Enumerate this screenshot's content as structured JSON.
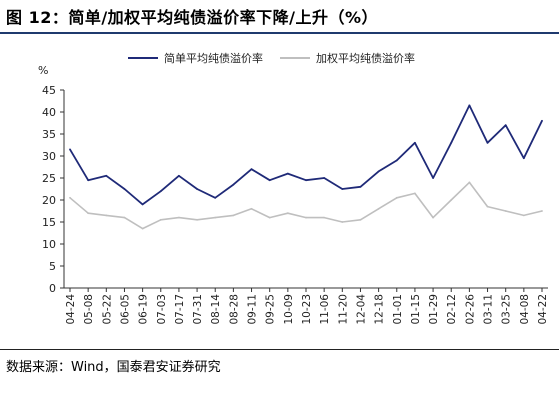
{
  "figure": {
    "title": "图 12：简单/加权平均纯债溢价率下降/上升（%）",
    "source": "数据来源：Wind，国泰君安证券研究"
  },
  "chart_data": {
    "type": "line",
    "ylabel": "%",
    "ylim": [
      0,
      45
    ],
    "yticks": [
      0,
      5,
      10,
      15,
      20,
      25,
      30,
      35,
      40,
      45
    ],
    "grid": false,
    "legend_position": "top",
    "x": [
      "04-24",
      "05-08",
      "05-22",
      "06-05",
      "06-19",
      "07-03",
      "07-17",
      "07-31",
      "08-14",
      "08-28",
      "09-11",
      "09-25",
      "10-09",
      "10-23",
      "11-06",
      "11-20",
      "12-04",
      "12-18",
      "01-01",
      "01-15",
      "01-29",
      "02-12",
      "02-26",
      "03-11",
      "03-25",
      "04-08",
      "04-22"
    ],
    "series": [
      {
        "name": "简单平均纯债溢价率",
        "color": "#1f2a78",
        "values": [
          31.5,
          24.5,
          25.5,
          22.5,
          19.0,
          22.0,
          25.5,
          22.5,
          20.5,
          23.5,
          27.0,
          24.5,
          26.0,
          24.5,
          25.0,
          22.5,
          23.0,
          26.5,
          29.0,
          33.0,
          25.0,
          33.0,
          41.5,
          33.0,
          37.0,
          29.5,
          38.0
        ]
      },
      {
        "name": "加权平均纯债溢价率",
        "color": "#bfbfbf",
        "values": [
          20.5,
          17.0,
          16.5,
          16.0,
          13.5,
          15.5,
          16.0,
          15.5,
          16.0,
          16.5,
          18.0,
          16.0,
          17.0,
          16.0,
          16.0,
          15.0,
          15.5,
          18.0,
          20.5,
          21.5,
          16.0,
          20.0,
          24.0,
          18.5,
          17.5,
          16.5,
          17.5
        ]
      }
    ]
  }
}
